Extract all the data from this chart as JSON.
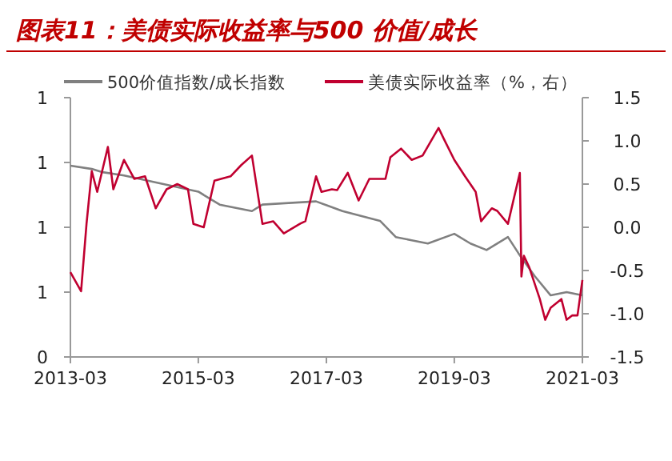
{
  "chart_data": {
    "type": "line",
    "title": "图表11：美债实际收益率与500 价值/成长",
    "legend": "top",
    "xlim": [
      "2013-03",
      "2021-03"
    ],
    "xticks": [
      {
        "value": "2013-03",
        "label": "2013-03"
      },
      {
        "value": "2015-03",
        "label": "2015-03"
      },
      {
        "value": "2017-03",
        "label": "2017-03"
      },
      {
        "value": "2019-03",
        "label": "2019-03"
      },
      {
        "value": "2021-03",
        "label": "2021-03"
      }
    ],
    "ylim": [
      0.4,
      1.2
    ],
    "yticks": [
      {
        "value": 0.4,
        "label": "0"
      },
      {
        "value": 0.6,
        "label": "1"
      },
      {
        "value": 0.8,
        "label": "1"
      },
      {
        "value": 1.0,
        "label": "1"
      },
      {
        "value": 1.2,
        "label": "1"
      }
    ],
    "y2lim": [
      -1.5,
      1.5
    ],
    "y2ticks": [
      {
        "value": -1.5,
        "label": "-1.5"
      },
      {
        "value": -1.0,
        "label": "-1.0"
      },
      {
        "value": -0.5,
        "label": "-0.5"
      },
      {
        "value": 0,
        "label": "0.0"
      },
      {
        "value": 0.5,
        "label": "0.5"
      },
      {
        "value": 1.0,
        "label": "1.0"
      },
      {
        "value": 1.5,
        "label": "1.5"
      }
    ],
    "series": [
      {
        "name": "500价值指数/成长指数",
        "color": "#808080",
        "x": [
          "2013-03",
          "2013-07",
          "2013-09",
          "2014-01",
          "2015-03",
          "2015-07",
          "2016-01",
          "2016-03",
          "2017-01",
          "2017-06",
          "2018-01",
          "2018-04",
          "2018-07",
          "2018-10",
          "2019-03",
          "2019-06",
          "2019-09",
          "2020-01",
          "2020-03",
          "2020-06",
          "2020-09",
          "2020-12",
          "2021-03"
        ],
        "values": [
          0.99,
          0.98,
          0.97,
          0.96,
          0.91,
          0.87,
          0.85,
          0.87,
          0.88,
          0.85,
          0.82,
          0.77,
          0.76,
          0.75,
          0.78,
          0.75,
          0.73,
          0.77,
          0.72,
          0.65,
          0.59,
          0.6,
          0.59
        ]
      },
      {
        "name": "美债实际收益率（%，右）",
        "color": "#c00030",
        "axis": "y2",
        "x": [
          "2013-03",
          "2013-05",
          "2013-06",
          "2013-07",
          "2013-08",
          "2013-10",
          "2013-11",
          "2014-01",
          "2014-03",
          "2014-05",
          "2014-07",
          "2014-09",
          "2014-11",
          "2015-01",
          "2015-02",
          "2015-04",
          "2015-06",
          "2015-09",
          "2015-11",
          "2016-01",
          "2016-03",
          "2016-05",
          "2016-07",
          "2016-10",
          "2016-11",
          "2017-01",
          "2017-02",
          "2017-04",
          "2017-05",
          "2017-07",
          "2017-09",
          "2017-11",
          "2018-02",
          "2018-03",
          "2018-05",
          "2018-07",
          "2018-09",
          "2018-12",
          "2019-01",
          "2019-03",
          "2019-05",
          "2019-07",
          "2019-08",
          "2019-10",
          "2019-11",
          "2020-01",
          "2020-03-09",
          "2020-03-18",
          "2020-04",
          "2020-05",
          "2020-07",
          "2020-08",
          "2020-09",
          "2020-11",
          "2020-12",
          "2021-01",
          "2021-02",
          "2021-03"
        ],
        "values": [
          -0.52,
          -0.74,
          0.04,
          0.65,
          0.41,
          0.93,
          0.44,
          0.78,
          0.56,
          0.59,
          0.22,
          0.44,
          0.5,
          0.44,
          0.04,
          0.0,
          0.54,
          0.59,
          0.72,
          0.83,
          0.04,
          0.07,
          -0.07,
          0.04,
          0.07,
          0.59,
          0.41,
          0.44,
          0.43,
          0.63,
          0.31,
          0.56,
          0.56,
          0.81,
          0.91,
          0.78,
          0.83,
          1.15,
          1.02,
          0.78,
          0.59,
          0.41,
          0.07,
          0.22,
          0.19,
          0.04,
          0.63,
          -0.57,
          -0.33,
          -0.46,
          -0.83,
          -1.07,
          -0.93,
          -0.83,
          -1.07,
          -1.02,
          -1.02,
          -0.61
        ]
      }
    ]
  }
}
